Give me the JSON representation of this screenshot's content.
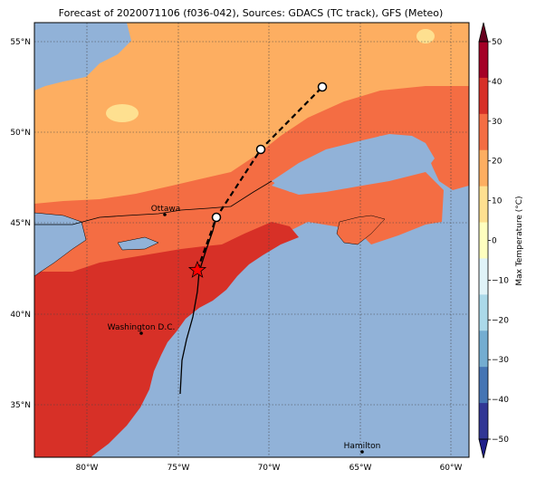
{
  "map": {
    "title": "Forecast of 2020071106 (f036-042), Sources: GDACS (TC track), GFS (Meteo)",
    "lon_ticks": [
      "80°W",
      "75°W",
      "70°W",
      "65°W",
      "60°W"
    ],
    "lat_ticks": [
      "55°N",
      "50°N",
      "45°N",
      "40°N",
      "35°N"
    ],
    "cities": [
      {
        "name": "Ottawa"
      },
      {
        "name": "Washington D.C."
      },
      {
        "name": "Hamilton"
      }
    ],
    "colors": {
      "ocean": "#91b2d8",
      "land_hot": "#d73027",
      "land_warm": "#f46d43",
      "land_mild": "#fdae61",
      "land_cool": "#fee090",
      "land_cold": "#ffffbf",
      "track": "#000000",
      "storm_marker": "#ff0000"
    }
  },
  "colorbar": {
    "label": "Max Temperature (°C)",
    "ticks": [
      "50",
      "40",
      "30",
      "20",
      "10",
      "0",
      "−10",
      "−20",
      "−30",
      "−40",
      "−50"
    ],
    "colors": [
      "#67001f",
      "#a50026",
      "#d73027",
      "#f46d43",
      "#fdae61",
      "#fee090",
      "#ffffbf",
      "#e0f3f8",
      "#abd9e9",
      "#74add1",
      "#4575b4",
      "#313695",
      "#1f1f8a"
    ]
  }
}
